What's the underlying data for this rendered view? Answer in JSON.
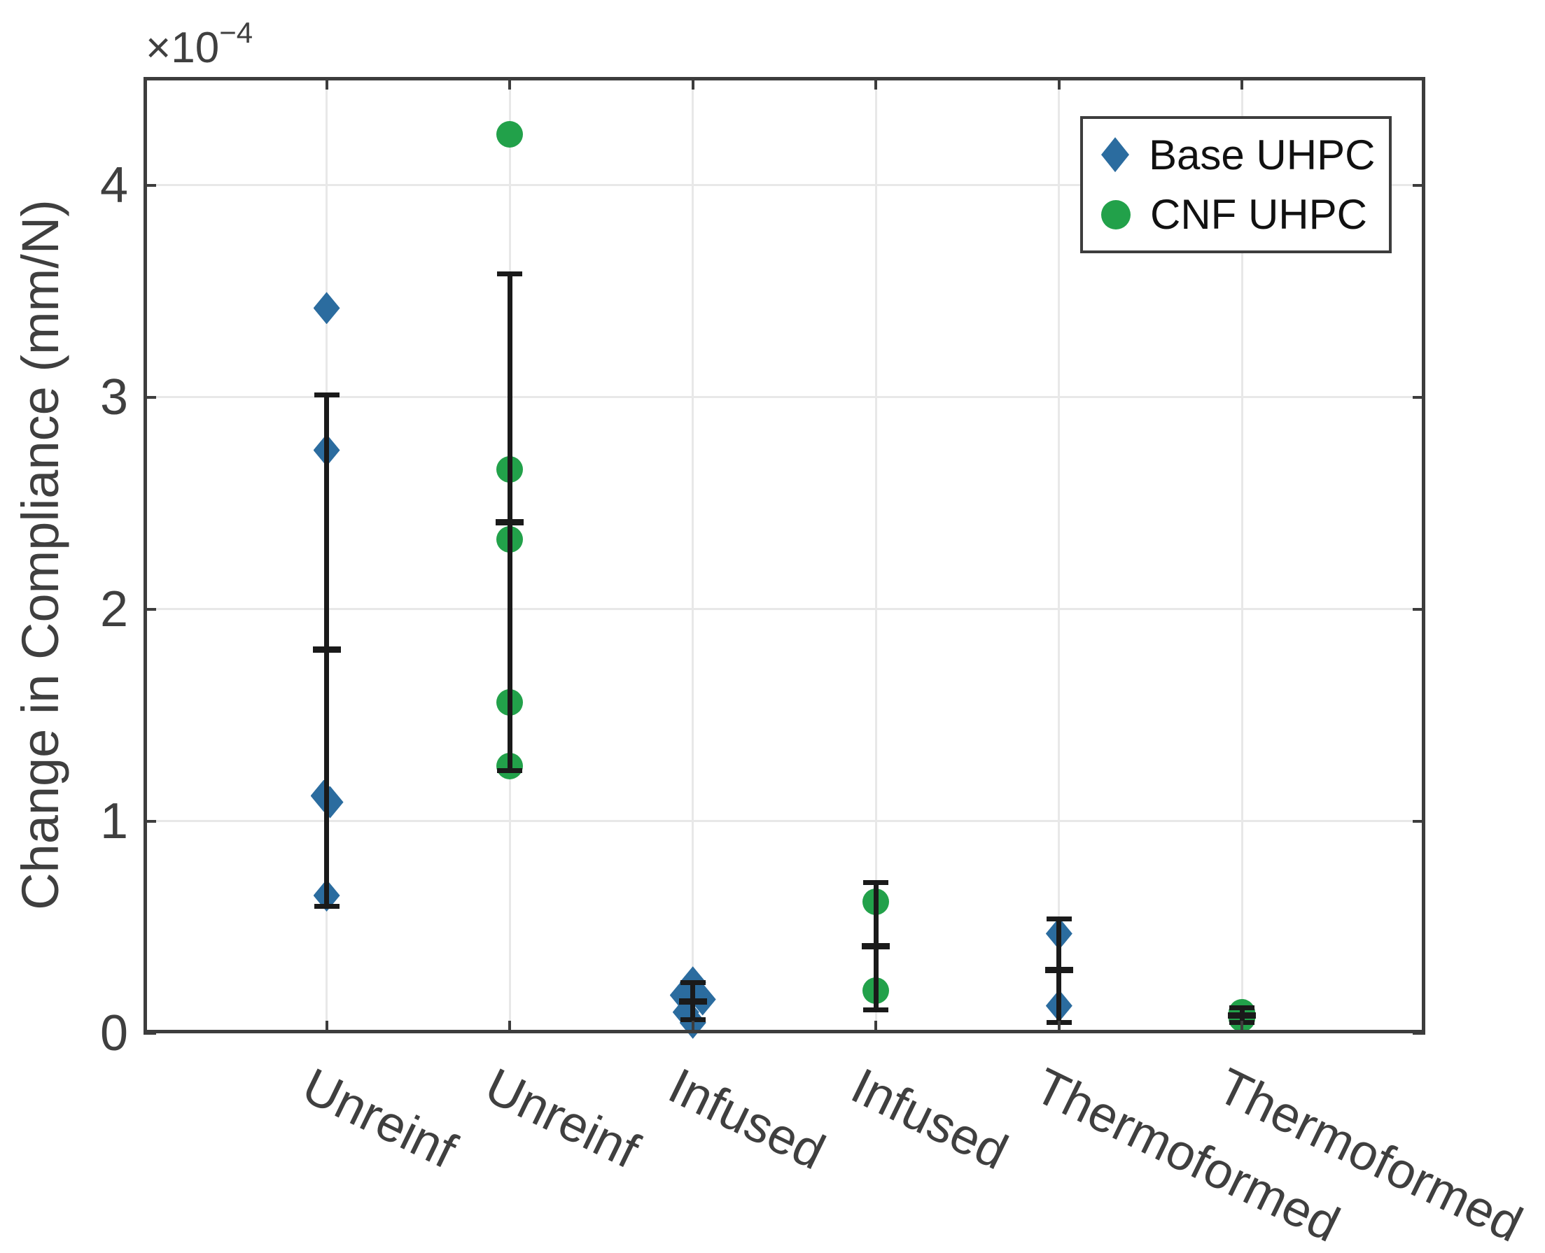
{
  "chart_data": {
    "type": "scatter",
    "title": "",
    "ylabel": "Change in Compliance (mm/N)",
    "y_scale": {
      "times": "×",
      "base": "10",
      "exponent": "−4"
    },
    "ylim": [
      0,
      4.51
    ],
    "yticks": [
      0,
      1,
      2,
      3,
      4
    ],
    "xlim": [
      0,
      7
    ],
    "grid": true,
    "categories": [
      {
        "x": 1,
        "label": "Unreinf"
      },
      {
        "x": 2,
        "label": "Unreinf"
      },
      {
        "x": 3,
        "label": "Infused"
      },
      {
        "x": 4,
        "label": "Infused"
      },
      {
        "x": 5,
        "label": "Thermoformed"
      },
      {
        "x": 6,
        "label": "Thermoformed"
      }
    ],
    "legend": {
      "position": "top-right",
      "entries": [
        {
          "label": "Base UHPC",
          "marker": "diamond",
          "color": "#2b6c9f"
        },
        {
          "label": "CNF UHPC",
          "marker": "circle",
          "color": "#22a14a"
        }
      ]
    },
    "series": [
      {
        "name": "Base UHPC",
        "marker": "diamond",
        "color": "#2b6c9f",
        "groups": [
          {
            "x": 1,
            "category": "Unreinf",
            "points": [
              3.42,
              2.75,
              1.12,
              1.09,
              0.65
            ],
            "points_dx": [
              0,
              0,
              -4,
              5,
              0
            ],
            "mean": 1.81,
            "err_low": 0.6,
            "err_high": 3.01
          },
          {
            "x": 3,
            "category": "Infused",
            "points": [
              0.24,
              0.18,
              0.16,
              0.1,
              0.05
            ],
            "points_dx": [
              0,
              -14,
              14,
              -10,
              0
            ],
            "mean": 0.15,
            "err_low": 0.065,
            "err_high": 0.24
          },
          {
            "x": 5,
            "category": "Thermoformed",
            "points": [
              0.47,
              0.13
            ],
            "points_dx": [
              0,
              0
            ],
            "mean": 0.3,
            "err_low": 0.05,
            "err_high": 0.54
          }
        ]
      },
      {
        "name": "CNF UHPC",
        "marker": "circle",
        "color": "#22a14a",
        "groups": [
          {
            "x": 2,
            "category": "Unreinf",
            "points": [
              4.24,
              2.66,
              2.33,
              1.56,
              1.26
            ],
            "points_dx": [
              0,
              0,
              0,
              0,
              0
            ],
            "mean": 2.41,
            "err_low": 1.24,
            "err_high": 3.58
          },
          {
            "x": 4,
            "category": "Infused",
            "points": [
              0.62,
              0.2
            ],
            "points_dx": [
              0,
              0
            ],
            "mean": 0.41,
            "err_low": 0.11,
            "err_high": 0.71
          },
          {
            "x": 6,
            "category": "Thermoformed",
            "points": [
              0.1,
              0.07
            ],
            "points_dx": [
              0,
              0
            ],
            "mean": 0.085,
            "err_low": 0.05,
            "err_high": 0.12
          }
        ]
      }
    ],
    "errorbar_color": "#1a1a1a",
    "colors": {
      "axis": "#3d3d3d",
      "grid": "#e8e8e8",
      "tick_text": "#3f3f3f",
      "legend_text": "#111111",
      "background": "#ffffff"
    }
  }
}
